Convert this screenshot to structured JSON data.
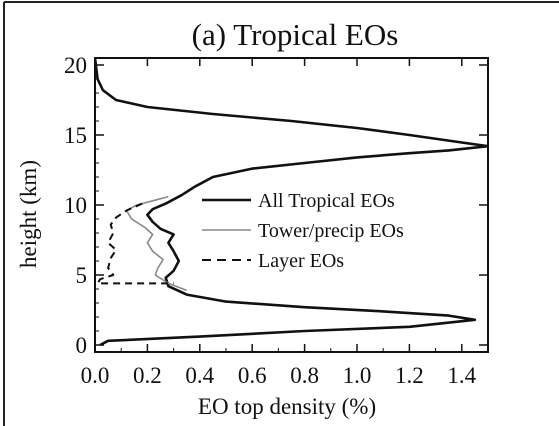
{
  "chart_data": {
    "type": "line",
    "title": "(a) Tropical EOs",
    "xlabel": "EO top density (%)",
    "ylabel": "height (km)",
    "xlim": [
      0.0,
      1.5
    ],
    "ylim": [
      -0.5,
      20.5
    ],
    "xticks": [
      "0.0",
      "0.2",
      "0.4",
      "0.6",
      "0.8",
      "1.0",
      "1.2",
      "1.4"
    ],
    "yticks": [
      "0",
      "5",
      "10",
      "15",
      "20"
    ],
    "grid": false,
    "legend_position": "right-middle",
    "series": [
      {
        "name": "All Tropical EOs",
        "style": "solid-thick",
        "color": "#111111",
        "points": [
          [
            0.0,
            20.5
          ],
          [
            0.01,
            19.0
          ],
          [
            0.03,
            18.2
          ],
          [
            0.08,
            17.5
          ],
          [
            0.2,
            17.0
          ],
          [
            0.45,
            16.5
          ],
          [
            0.75,
            16.0
          ],
          [
            1.0,
            15.5
          ],
          [
            1.2,
            15.0
          ],
          [
            1.35,
            14.6
          ],
          [
            1.5,
            14.2
          ],
          [
            1.35,
            13.9
          ],
          [
            1.2,
            13.7
          ],
          [
            1.0,
            13.4
          ],
          [
            0.8,
            13.0
          ],
          [
            0.6,
            12.6
          ],
          [
            0.45,
            12.0
          ],
          [
            0.38,
            11.3
          ],
          [
            0.33,
            10.7
          ],
          [
            0.27,
            10.1
          ],
          [
            0.22,
            9.7
          ],
          [
            0.2,
            9.3
          ],
          [
            0.22,
            8.8
          ],
          [
            0.25,
            8.3
          ],
          [
            0.3,
            7.9
          ],
          [
            0.28,
            7.3
          ],
          [
            0.3,
            6.7
          ],
          [
            0.32,
            6.0
          ],
          [
            0.3,
            5.3
          ],
          [
            0.27,
            4.8
          ],
          [
            0.28,
            4.2
          ],
          [
            0.35,
            3.6
          ],
          [
            0.5,
            3.1
          ],
          [
            0.8,
            2.7
          ],
          [
            1.1,
            2.4
          ],
          [
            1.35,
            2.1
          ],
          [
            1.45,
            1.8
          ],
          [
            1.2,
            1.3
          ],
          [
            0.8,
            1.0
          ],
          [
            0.4,
            0.6
          ],
          [
            0.05,
            0.3
          ],
          [
            0.02,
            0.0
          ]
        ]
      },
      {
        "name": "Tower/precip EOs",
        "style": "solid-thin",
        "color": "#888888",
        "points": [
          [
            0.28,
            10.6
          ],
          [
            0.22,
            10.3
          ],
          [
            0.16,
            10.0
          ],
          [
            0.12,
            9.6
          ],
          [
            0.14,
            9.0
          ],
          [
            0.19,
            8.4
          ],
          [
            0.22,
            7.9
          ],
          [
            0.2,
            7.3
          ],
          [
            0.22,
            6.7
          ],
          [
            0.26,
            6.1
          ],
          [
            0.24,
            5.5
          ],
          [
            0.23,
            5.0
          ],
          [
            0.28,
            4.4
          ],
          [
            0.35,
            3.9
          ]
        ]
      },
      {
        "name": "Layer EOs",
        "style": "dashed",
        "color": "#111111",
        "points": [
          [
            0.18,
            10.1
          ],
          [
            0.12,
            9.6
          ],
          [
            0.08,
            9.1
          ],
          [
            0.06,
            8.6
          ],
          [
            0.07,
            8.0
          ],
          [
            0.05,
            7.3
          ],
          [
            0.08,
            6.8
          ],
          [
            0.06,
            6.2
          ],
          [
            0.05,
            5.5
          ],
          [
            0.07,
            5.0
          ],
          [
            0.02,
            4.7
          ],
          [
            0.01,
            4.4
          ],
          [
            0.3,
            4.4
          ]
        ]
      }
    ]
  }
}
